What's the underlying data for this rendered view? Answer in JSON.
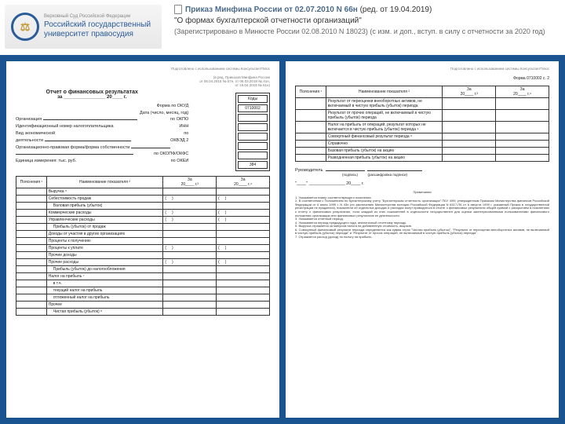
{
  "header": {
    "logo_top": "Верховный Суд Российской Федерации",
    "logo_main1": "Российский государственный",
    "logo_main2": "университет правосудия",
    "decree_title": "Приказ Минфина России от 02.07.2010 N 66н",
    "decree_rev": "(ред. от 19.04.2019)",
    "decree_name": "\"О формах бухгалтерской отчетности организаций\"",
    "decree_reg": "(Зарегистрировано в Минюсте России 02.08.2010 N 18023) (с изм. и доп., вступ. в силу с отчетности за 2020 год)"
  },
  "page1": {
    "sysnote": "Подготовлено с использованием системы КонсультантПлюс",
    "ref1": "(в ред. Приказов Минфина России",
    "ref2": "от 06.04.2015 № 57н, от 06.03.2018 № 41н,",
    "ref3": "от 19.04.2019 № 61н)",
    "title": "Отчет о финансовых результатах",
    "title_sub": "за ________________ 20____ г.",
    "codes_hdr": "Коды",
    "form_okud_lbl": "Форма по ОКУД",
    "form_okud_val": "0710002",
    "date_lbl": "Дата (число, месяц, год)",
    "org_lbl": "Организация",
    "okpo_lbl": "по ОКПО",
    "inn_lbl": "Идентификационный номер налогоплательщика",
    "inn_code": "ИНН",
    "vid_lbl": "Вид экономической",
    "vid_lbl2": "деятельности",
    "okved_lbl": "по",
    "okved_lbl2": "ОКВЭД 2",
    "opf_lbl": "Организационно-правовая форма/форма собственности",
    "okopf_lbl": "по ОКОПФ/ОКФС",
    "unit_lbl": "Единица измерения: тыс. руб.",
    "okei_lbl": "по ОКЕИ",
    "okei_val": "384",
    "col_expl": "Пояснения ¹",
    "col_name": "Наименование показателя ²",
    "col_za": "За",
    "col_y1": "20____ г.³",
    "col_y2": "20____ г.⁴",
    "rows": [
      "Выручка ⁵",
      "Себестоимость продаж",
      "Валовая прибыль (убыток)",
      "Коммерческие расходы",
      "Управленческие расходы",
      "Прибыль (убыток) от продаж",
      "Доходы от участия в других организациях",
      "Проценты к получению",
      "Проценты к уплате",
      "Прочие доходы",
      "Прочие расходы",
      "Прибыль (убыток) до налогообложения",
      "Налог на прибыль ⁷",
      "в т.ч.",
      "текущий налог на прибыль",
      "отложенный налог на прибыль",
      "Прочее",
      "Чистая прибыль (убыток) ⁸"
    ]
  },
  "page2": {
    "sysnote": "Подготовлено с использованием системы КонсультантПлюс",
    "formcode": "Форма 0710002 с. 2",
    "col_expl": "Пояснения ¹",
    "col_name": "Наименование показателя ²",
    "col_za": "За",
    "col_y1": "20____ г.³",
    "col_y2": "20____ г.⁴",
    "rows2": [
      "Результат от переоценки внеоборотных активов, не включаемый в чистую прибыль (убыток) периода",
      "Результат от прочих операций, не включаемый в чистую прибыль (убыток) периода",
      "Налог на прибыль от операций, результат которых не включается в чистую прибыль (убыток) периода ⁹",
      "Совокупный финансовый результат периода ⁶",
      "Справочно",
      "Базовая прибыль (убыток) на акцию",
      "Разводненная прибыль (убыток) на акцию"
    ],
    "sig_head": "Руководитель",
    "sig_p1": "(подпись)",
    "sig_p2": "(расшифровка подписи)",
    "sig_date": "\"____\" _______________ 20____ г.",
    "notes_hdr": "Примечания",
    "notes": "1. Указывается номер соответствующего пояснения.\n2. В соответствии с Положением по бухгалтерскому учету \"Бухгалтерская отчетность организации\" ПБУ 4/99, утвержденным Приказом Министерства финансов Российской Федерации от 6 июля 1999 г. N 43н (по заключению Министерства юстиции Российской Федерации N 6417-ПК от 6 августа 1999 г. указанный Приказ в государственной регистрации не нуждается), показатели об отдельных доходах и расходах могут приводиться в отчете о финансовых результатах общей суммой с раскрытием в пояснениях к отчету о финансовых результатах, если каждый из этих показателей в отдельности несущественен для оценки заинтересованными пользователями финансового положения организации или финансовых результатов ее деятельности.\n3. Указывается отчетный период.\n4. Указывается период предыдущего года, аналогичный отчетному периоду.\n5. Выручка отражается за минусом налога на добавленную стоимость, акцизов.\n6. Совокупный финансовый результат периода определяется как сумма строк \"Чистая прибыль (убыток)\", \"Результат от переоценки внеоборотных активов, не включаемый в чистую прибыль (убыток) периода\" и \"Результат от прочих операций, не включаемый в чистую прибыль (убыток) периода\".\n7. Отражается расход (доход) по налогу на прибыль."
  }
}
